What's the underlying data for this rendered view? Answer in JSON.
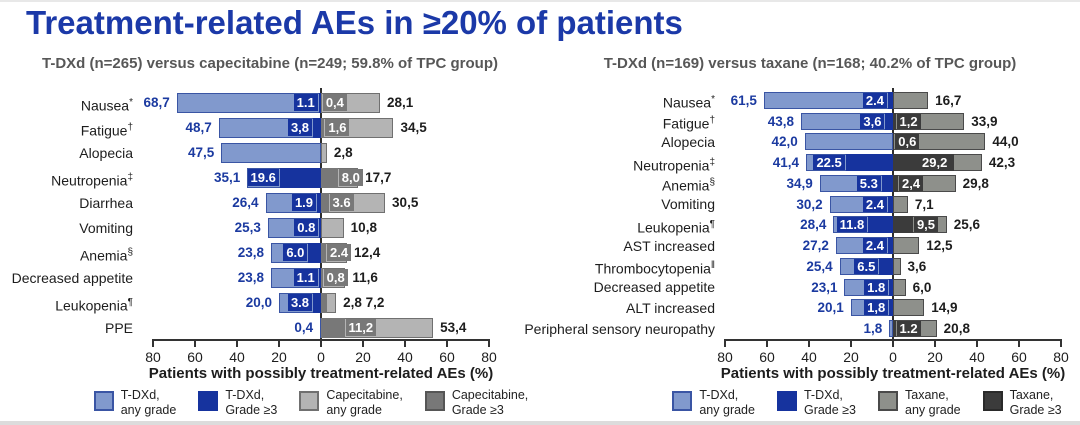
{
  "page": {
    "title": "Treatment-related AEs in ≥20% of patients"
  },
  "colors": {
    "title_blue": "#1b39a8",
    "subtitle_gray": "#575757",
    "value_blue": "#1b3aa0",
    "value_black": "#1d1d1d",
    "axis": "#333333"
  },
  "chart_data": [
    {
      "type": "bar",
      "orientation": "diverging-horizontal",
      "subtitle": "T-DXd (n=265) versus capecitabine (n=249; 59.8% of TPC group)",
      "xlabel": "Patients with possibly treatment-related AEs (%)",
      "x_ticks": [
        "80",
        "60",
        "40",
        "20",
        "0",
        "20",
        "40",
        "60",
        "80"
      ],
      "axis_max": 80,
      "grid": false,
      "series_names": [
        "T-DXd, any grade",
        "T-DXd, Grade ≥3",
        "Capecitabine, any grade",
        "Capecitabine, Grade ≥3"
      ],
      "colors": {
        "left_any": "#8199cd",
        "left_any_border": "#3a55a4",
        "left_g3": "#16339e",
        "right_any": "#b4b4b4",
        "right_any_border": "#707070",
        "right_g3": "#787878"
      },
      "legend": [
        {
          "lines": [
            "T-DXd,",
            "any grade"
          ],
          "color": "#8199cd",
          "border": "#3a55a4"
        },
        {
          "lines": [
            "T-DXd,",
            "Grade ≥3"
          ],
          "color": "#16339e",
          "border": "#16339e"
        },
        {
          "lines": [
            "Capecitabine,",
            "any grade"
          ],
          "color": "#b4b4b4",
          "border": "#707070"
        },
        {
          "lines": [
            "Capecitabine,",
            "Grade ≥3"
          ],
          "color": "#787878",
          "border": "#565656"
        }
      ],
      "rows": [
        {
          "label": "Nausea",
          "sup": "*",
          "left_any": 68.7,
          "left_any_label": "68,7",
          "left_g3": 1.1,
          "left_g3_label": "1.1",
          "right_g3": 0.4,
          "right_g3_label": "0,4",
          "right_any": 28.1,
          "right_any_label": "28,1"
        },
        {
          "label": "Fatigue",
          "sup": "†",
          "left_any": 48.7,
          "left_any_label": "48,7",
          "left_g3": 3.8,
          "left_g3_label": "3,8",
          "right_g3": 1.6,
          "right_g3_label": "1,6",
          "right_any": 34.5,
          "right_any_label": "34,5"
        },
        {
          "label": "Alopecia",
          "sup": "",
          "left_any": 47.5,
          "left_any_label": "47,5",
          "left_g3": null,
          "left_g3_label": null,
          "right_g3": null,
          "right_g3_label": null,
          "right_any": 2.8,
          "right_any_label": "2,8"
        },
        {
          "label": "Neutropenia",
          "sup": "‡",
          "left_any": 35.1,
          "left_any_label": "35,1",
          "left_g3": 19.6,
          "left_g3_label": "19.6",
          "right_g3": 8.0,
          "right_g3_label": "8,0",
          "right_any": 17.7,
          "right_any_label": "17,7"
        },
        {
          "label": "Diarrhea",
          "sup": "",
          "left_any": 26.4,
          "left_any_label": "26,4",
          "left_g3": 1.9,
          "left_g3_label": "1.9",
          "right_g3": 3.6,
          "right_g3_label": "3.6",
          "right_any": 30.5,
          "right_any_label": "30,5"
        },
        {
          "label": "Vomiting",
          "sup": "",
          "left_any": 25.3,
          "left_any_label": "25,3",
          "left_g3": 0.8,
          "left_g3_label": "0.8",
          "right_g3": null,
          "right_g3_label": null,
          "right_any": 10.8,
          "right_any_label": "10,8"
        },
        {
          "label": "Anemia",
          "sup": "§",
          "left_any": 23.8,
          "left_any_label": "23,8",
          "left_g3": 6.0,
          "left_g3_label": "6.0",
          "right_g3": 2.4,
          "right_g3_label": "2.4",
          "right_any": 12.4,
          "right_any_label": "12,4"
        },
        {
          "label": "Decreased appetite",
          "sup": "",
          "left_any": 23.8,
          "left_any_label": "23,8",
          "left_g3": 1.1,
          "left_g3_label": "1.1",
          "right_g3": 0.8,
          "right_g3_label": "0,8",
          "right_any": 11.6,
          "right_any_label": "11,6"
        },
        {
          "label": "Leukopenia",
          "sup": "¶",
          "left_any": 20.0,
          "left_any_label": "20,0",
          "left_g3": 3.8,
          "left_g3_label": "3.8",
          "right_g3": 2.8,
          "right_g3_label": "2,8",
          "right_any": 7.2,
          "right_any_label": "7,2",
          "right_labels_outside": true
        },
        {
          "label": "PPE",
          "sup": "",
          "left_any": 0.4,
          "left_any_label": "0,4",
          "left_g3": null,
          "left_g3_label": null,
          "right_g3": 11.2,
          "right_g3_label": "11,2",
          "right_any": 53.4,
          "right_any_label": "53,4"
        }
      ]
    },
    {
      "type": "bar",
      "orientation": "diverging-horizontal",
      "subtitle": "T-DXd (n=169) versus taxane (n=168; 40.2% of TPC group)",
      "xlabel": "Patients with possibly treatment-related AEs (%)",
      "x_ticks": [
        "80",
        "60",
        "40",
        "20",
        "0",
        "20",
        "40",
        "60",
        "80"
      ],
      "axis_max": 80,
      "grid": false,
      "series_names": [
        "T-DXd, any grade",
        "T-DXd, Grade ≥3",
        "Taxane, any grade",
        "Taxane, Grade ≥3"
      ],
      "colors": {
        "left_any": "#8199cd",
        "left_any_border": "#3a55a4",
        "left_g3": "#16339e",
        "right_any": "#8e908b",
        "right_any_border": "#4a4a4a",
        "right_g3": "#3b3b3b"
      },
      "legend": [
        {
          "lines": [
            "T-DXd,",
            "any grade"
          ],
          "color": "#8199cd",
          "border": "#3a55a4"
        },
        {
          "lines": [
            "T-DXd,",
            "Grade ≥3"
          ],
          "color": "#16339e",
          "border": "#16339e"
        },
        {
          "lines": [
            "Taxane,",
            "any grade"
          ],
          "color": "#8e908b",
          "border": "#4a4a4a"
        },
        {
          "lines": [
            "Taxane,",
            "Grade ≥3"
          ],
          "color": "#3b3b3b",
          "border": "#2a2a2a"
        }
      ],
      "rows": [
        {
          "label": "Nausea",
          "sup": "*",
          "left_any": 61.5,
          "left_any_label": "61,5",
          "left_g3": 2.4,
          "left_g3_label": "2.4",
          "right_g3": null,
          "right_g3_label": null,
          "right_any": 16.7,
          "right_any_label": "16,7"
        },
        {
          "label": "Fatigue",
          "sup": "†",
          "left_any": 43.8,
          "left_any_label": "43,8",
          "left_g3": 3.6,
          "left_g3_label": "3,6",
          "right_g3": 1.2,
          "right_g3_label": "1,2",
          "right_any": 33.9,
          "right_any_label": "33,9"
        },
        {
          "label": "Alopecia",
          "sup": "",
          "left_any": 42.0,
          "left_any_label": "42,0",
          "left_g3": null,
          "left_g3_label": null,
          "right_g3": 0.6,
          "right_g3_label": "0,6",
          "right_any": 44.0,
          "right_any_label": "44,0"
        },
        {
          "label": "Neutropenia",
          "sup": "‡",
          "left_any": 41.4,
          "left_any_label": "41,4",
          "left_g3": 22.5,
          "left_g3_label": "22.5",
          "right_g3": 29.2,
          "right_g3_label": "29,2",
          "right_any": 42.3,
          "right_any_label": "42,3"
        },
        {
          "label": "Anemia",
          "sup": "§",
          "left_any": 34.9,
          "left_any_label": "34,9",
          "left_g3": 5.3,
          "left_g3_label": "5.3",
          "right_g3": 2.4,
          "right_g3_label": "2,4",
          "right_any": 29.8,
          "right_any_label": "29,8"
        },
        {
          "label": "Vomiting",
          "sup": "",
          "left_any": 30.2,
          "left_any_label": "30,2",
          "left_g3": 2.4,
          "left_g3_label": "2.4",
          "right_g3": null,
          "right_g3_label": null,
          "right_any": 7.1,
          "right_any_label": "7,1"
        },
        {
          "label": "Leukopenia",
          "sup": "¶",
          "left_any": 28.4,
          "left_any_label": "28,4",
          "left_g3": 11.8,
          "left_g3_label": "11.8",
          "right_g3": 9.5,
          "right_g3_label": "9,5",
          "right_any": 25.6,
          "right_any_label": "25,6"
        },
        {
          "label": "AST increased",
          "sup": "",
          "left_any": 27.2,
          "left_any_label": "27,2",
          "left_g3": 2.4,
          "left_g3_label": "2.4",
          "right_g3": null,
          "right_g3_label": null,
          "right_any": 12.5,
          "right_any_label": "12,5"
        },
        {
          "label": "Thrombocytopenia",
          "sup": "‖",
          "left_any": 25.4,
          "left_any_label": "25,4",
          "left_g3": 6.5,
          "left_g3_label": "6.5",
          "right_g3": null,
          "right_g3_label": null,
          "right_any": 3.6,
          "right_any_label": "3,6"
        },
        {
          "label": "Decreased appetite",
          "sup": "",
          "left_any": 23.1,
          "left_any_label": "23,1",
          "left_g3": 1.8,
          "left_g3_label": "1.8",
          "right_g3": null,
          "right_g3_label": null,
          "right_any": 6.0,
          "right_any_label": "6,0"
        },
        {
          "label": "ALT increased",
          "sup": "",
          "left_any": 20.1,
          "left_any_label": "20,1",
          "left_g3": 1.8,
          "left_g3_label": "1,8",
          "right_g3": null,
          "right_g3_label": null,
          "right_any": 14.9,
          "right_any_label": "14,9"
        },
        {
          "label": "Peripheral sensory neuropathy",
          "sup": "",
          "left_any": 1.8,
          "left_any_label": "1,8",
          "left_g3": null,
          "left_g3_label": null,
          "right_g3": 1.2,
          "right_g3_label": "1.2",
          "right_any": 20.8,
          "right_any_label": "20,8"
        }
      ]
    }
  ]
}
